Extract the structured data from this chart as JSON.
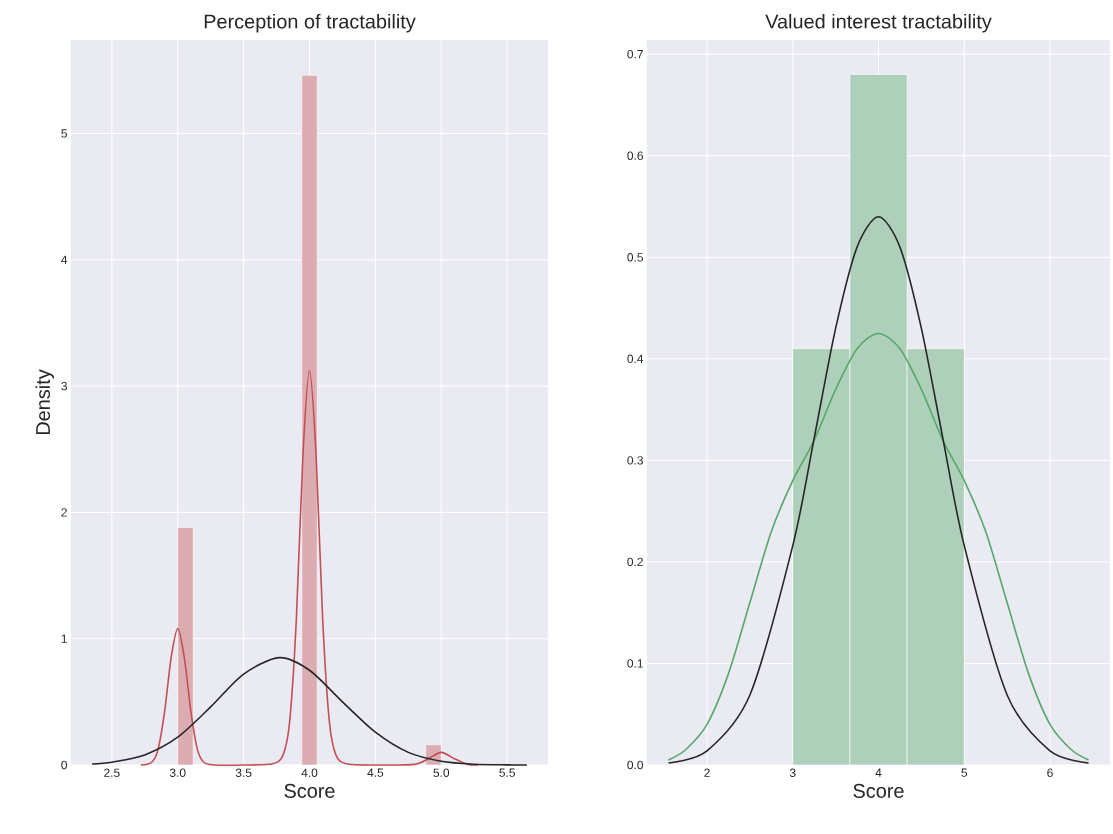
{
  "chart_data": [
    {
      "type": "histogram",
      "title": "Perception of tractability",
      "xlabel": "Score",
      "ylabel": "Density",
      "grid": true,
      "xlim": [
        2.19,
        5.81
      ],
      "ylim": [
        0,
        5.74
      ],
      "xticks": [
        2.5,
        {
          "value": 3,
          "label": "3.0"
        },
        3.5,
        {
          "value": 4,
          "label": "4.0"
        },
        4.5,
        {
          "value": 5,
          "label": "5.0"
        },
        5.5
      ],
      "yticks": [
        0,
        1,
        2,
        3,
        4,
        5
      ],
      "series": [
        {
          "color": "#dbacb2",
          "bins": [
            3,
            3.1176,
            3.2353,
            3.3529,
            3.4706,
            3.5882,
            3.7059,
            3.8235,
            3.9412,
            4.0588,
            4.1765,
            4.2941,
            4.4118,
            4.5294,
            4.6471,
            4.7647,
            4.8824,
            5
          ],
          "values": [
            1.88,
            0,
            0,
            0,
            0,
            0,
            0,
            0,
            5.46,
            0,
            0,
            0,
            0,
            0,
            0,
            0,
            0.16
          ]
        },
        {
          "type": "line",
          "color": "#c44e52",
          "x": [
            2.72,
            2.8,
            2.85,
            2.9,
            2.95,
            3.0,
            3.05,
            3.1,
            3.15,
            3.2,
            3.28,
            3.5,
            3.72,
            3.8,
            3.85,
            3.9,
            3.95,
            4.0,
            4.05,
            4.1,
            4.15,
            4.2,
            4.28,
            4.5,
            4.8,
            4.9,
            5.0,
            5.1,
            5.2,
            5.28
          ],
          "values": [
            0,
            0.02,
            0.12,
            0.42,
            0.85,
            1.08,
            0.85,
            0.42,
            0.12,
            0.02,
            0,
            0,
            0.01,
            0.08,
            0.35,
            1.15,
            2.45,
            3.12,
            2.45,
            1.15,
            0.35,
            0.08,
            0.01,
            0,
            0.005,
            0.05,
            0.1,
            0.05,
            0.005,
            0
          ]
        },
        {
          "type": "line",
          "color": "#262626",
          "x": [
            2.35,
            2.5,
            2.75,
            3.0,
            3.25,
            3.5,
            3.77,
            4.0,
            4.25,
            4.5,
            4.75,
            5.0,
            5.25,
            5.5,
            5.65
          ],
          "values": [
            0.008,
            0.022,
            0.08,
            0.22,
            0.46,
            0.72,
            0.85,
            0.75,
            0.5,
            0.26,
            0.1,
            0.03,
            0.006,
            0.001,
            0
          ]
        }
      ]
    },
    {
      "type": "histogram",
      "title": "Valued interest tractability",
      "xlabel": "Score",
      "grid": true,
      "xlim": [
        1.3,
        6.7
      ],
      "ylim": [
        0,
        0.714
      ],
      "xticks": [
        2,
        3,
        4,
        5,
        6
      ],
      "yticks": [
        {
          "value": 0,
          "label": "0.0"
        },
        0.1,
        0.2,
        0.3,
        0.4,
        0.5,
        0.6,
        0.7
      ],
      "series": [
        {
          "color": "#aed0bb",
          "bins": [
            3,
            3.6667,
            4.3333,
            5
          ],
          "values": [
            0.41,
            0.68,
            0.41
          ]
        },
        {
          "type": "line",
          "color": "#55a868",
          "x": [
            1.55,
            1.75,
            2.0,
            2.25,
            2.5,
            2.75,
            3.0,
            3.25,
            3.5,
            3.75,
            4.0,
            4.25,
            4.5,
            4.75,
            5.0,
            5.25,
            5.5,
            5.75,
            6.0,
            6.25,
            6.45
          ],
          "values": [
            0.005,
            0.015,
            0.04,
            0.09,
            0.16,
            0.23,
            0.28,
            0.32,
            0.37,
            0.41,
            0.425,
            0.41,
            0.37,
            0.32,
            0.28,
            0.23,
            0.16,
            0.09,
            0.04,
            0.015,
            0.005
          ]
        },
        {
          "type": "line",
          "color": "#262626",
          "x": [
            1.55,
            2.0,
            2.5,
            3.0,
            3.25,
            3.5,
            3.75,
            4.0,
            4.25,
            4.5,
            4.75,
            5.0,
            5.5,
            6.0,
            6.45
          ],
          "values": [
            0.002,
            0.014,
            0.069,
            0.216,
            0.322,
            0.43,
            0.51,
            0.54,
            0.51,
            0.43,
            0.322,
            0.216,
            0.069,
            0.014,
            0.002
          ]
        }
      ]
    }
  ]
}
